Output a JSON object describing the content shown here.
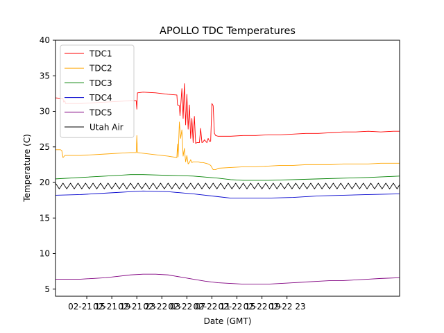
{
  "chart_data": {
    "type": "line",
    "title": "APOLLO TDC Temperatures",
    "xlabel": "Date (GMT)",
    "ylabel": "Temperature (C)",
    "ylim": [
      4,
      40
    ],
    "yticks": [
      5,
      10,
      15,
      20,
      25,
      30,
      35,
      40
    ],
    "xlim": [
      0.0,
      55.0
    ],
    "x_unit": "hours",
    "xticks": [
      {
        "x": 5.0,
        "label": "02-21 15"
      },
      {
        "x": 9.0,
        "label": "02-21 19"
      },
      {
        "x": 13.0,
        "label": "02-21 23"
      },
      {
        "x": 17.0,
        "label": "02-22 03"
      },
      {
        "x": 21.0,
        "label": "02-22 07"
      },
      {
        "x": 25.0,
        "label": "02-22 11"
      },
      {
        "x": 29.0,
        "label": "02-22 15"
      },
      {
        "x": 33.0,
        "label": "02-22 19"
      },
      {
        "x": 37.0,
        "label": "02-22 23"
      }
    ],
    "grid": false,
    "legend_position": "top-left",
    "series": [
      {
        "name": "TDC1",
        "color": "#ff0000",
        "x": [
          0.0,
          1.2,
          1.3,
          1.5,
          1.6,
          2.0,
          4.0,
          6.0,
          8.0,
          10.0,
          12.0,
          12.9,
          13.0,
          13.1,
          14.0,
          16.0,
          18.0,
          19.4,
          19.5,
          19.8,
          19.9,
          20.2,
          20.4,
          20.6,
          20.8,
          21.0,
          21.2,
          21.4,
          21.6,
          21.8,
          22.0,
          22.2,
          22.4,
          22.6,
          22.8,
          23.0,
          23.2,
          23.4,
          23.6,
          23.8,
          24.0,
          24.2,
          24.4,
          24.6,
          24.8,
          25.0,
          25.2,
          25.4,
          25.6,
          26.0,
          28.0,
          30.0,
          32.0,
          34.0,
          36.0,
          38.0,
          40.0,
          42.0,
          44.0,
          46.0,
          48.0,
          50.0,
          52.0,
          54.0,
          55.0
        ],
        "values": [
          31.9,
          31.8,
          31.3,
          31.5,
          31.1,
          31.1,
          31.1,
          31.2,
          31.3,
          31.4,
          31.5,
          31.5,
          30.3,
          32.6,
          32.7,
          32.6,
          32.4,
          32.3,
          30.9,
          30.8,
          29.4,
          33.2,
          29.0,
          33.9,
          28.1,
          32.4,
          27.5,
          30.9,
          26.2,
          29.0,
          25.6,
          29.3,
          25.5,
          25.6,
          25.6,
          25.6,
          27.6,
          25.6,
          25.7,
          26.0,
          25.8,
          25.6,
          26.2,
          25.8,
          25.8,
          31.1,
          30.8,
          26.9,
          26.6,
          26.5,
          26.5,
          26.6,
          26.6,
          26.7,
          26.7,
          26.8,
          26.9,
          26.9,
          27.0,
          27.1,
          27.1,
          27.2,
          27.1,
          27.2,
          27.2
        ]
      },
      {
        "name": "TDC2",
        "color": "#ffa500",
        "x": [
          0.0,
          0.8,
          1.0,
          1.2,
          1.5,
          2.0,
          4.0,
          6.0,
          8.0,
          10.0,
          12.0,
          12.9,
          13.0,
          13.1,
          14.0,
          16.0,
          18.0,
          19.4,
          19.5,
          19.6,
          19.8,
          20.0,
          20.2,
          20.4,
          20.6,
          20.8,
          21.0,
          21.2,
          21.4,
          21.6,
          21.8,
          22.0,
          22.4,
          22.8,
          23.2,
          23.6,
          24.0,
          24.4,
          24.8,
          25.2,
          25.6,
          26.0,
          28.0,
          30.0,
          32.0,
          34.0,
          36.0,
          38.0,
          40.0,
          42.0,
          44.0,
          46.0,
          48.0,
          50.0,
          52.0,
          54.0,
          55.0
        ],
        "values": [
          24.6,
          24.6,
          24.5,
          23.5,
          23.8,
          23.8,
          23.8,
          23.9,
          24.0,
          24.1,
          24.2,
          24.2,
          26.6,
          24.2,
          24.1,
          23.9,
          23.7,
          23.5,
          25.4,
          23.6,
          28.5,
          26.2,
          27.4,
          23.7,
          24.8,
          22.9,
          23.8,
          22.6,
          22.8,
          23.2,
          22.8,
          22.9,
          22.9,
          22.9,
          22.8,
          22.8,
          22.7,
          22.6,
          22.4,
          21.8,
          21.8,
          22.0,
          22.1,
          22.2,
          22.2,
          22.3,
          22.4,
          22.4,
          22.5,
          22.5,
          22.5,
          22.6,
          22.6,
          22.6,
          22.7,
          22.7,
          22.7
        ]
      },
      {
        "name": "TDC3",
        "color": "#008000",
        "x": [
          0.0,
          4.0,
          8.0,
          12.0,
          14.0,
          18.0,
          22.0,
          26.0,
          28.0,
          30.0,
          34.0,
          38.0,
          42.0,
          46.0,
          50.0,
          55.0
        ],
        "values": [
          20.5,
          20.7,
          20.9,
          21.1,
          21.1,
          21.0,
          20.9,
          20.6,
          20.4,
          20.3,
          20.3,
          20.4,
          20.5,
          20.6,
          20.7,
          20.9
        ]
      },
      {
        "name": "TDC4",
        "color": "#0000cd",
        "x": [
          0.0,
          4.0,
          8.0,
          12.0,
          14.0,
          18.0,
          22.0,
          26.0,
          28.0,
          30.0,
          34.0,
          38.0,
          42.0,
          46.0,
          50.0,
          55.0
        ],
        "values": [
          18.2,
          18.3,
          18.5,
          18.7,
          18.8,
          18.7,
          18.4,
          18.0,
          17.8,
          17.8,
          17.8,
          17.9,
          18.1,
          18.2,
          18.3,
          18.4
        ]
      },
      {
        "name": "TDC5",
        "color": "#800080",
        "x": [
          0.0,
          4.0,
          8.0,
          10.0,
          12.0,
          14.0,
          16.0,
          18.0,
          20.0,
          22.0,
          24.0,
          26.0,
          28.0,
          30.0,
          32.0,
          34.0,
          36.0,
          38.0,
          40.0,
          42.0,
          44.0,
          46.0,
          48.0,
          50.0,
          52.0,
          55.0
        ],
        "values": [
          6.4,
          6.4,
          6.6,
          6.8,
          7.0,
          7.1,
          7.1,
          7.0,
          6.7,
          6.4,
          6.1,
          5.9,
          5.8,
          5.7,
          5.7,
          5.7,
          5.8,
          5.9,
          6.0,
          6.1,
          6.2,
          6.2,
          6.3,
          6.4,
          6.5,
          6.6
        ]
      },
      {
        "name": "Utah Air",
        "color": "#000000",
        "x": [
          0.0,
          0.6,
          1.2,
          1.8,
          2.4,
          3.0,
          3.6,
          4.2,
          4.8,
          5.4,
          6.0,
          6.6,
          7.2,
          7.8,
          8.4,
          9.0,
          9.6,
          10.2,
          10.8,
          11.4,
          12.0,
          12.6,
          13.2,
          13.8,
          14.4,
          15.0,
          15.6,
          16.2,
          16.8,
          17.4,
          18.0,
          18.6,
          19.2,
          19.8,
          20.4,
          21.0,
          21.6,
          22.2,
          22.8,
          23.4,
          24.0,
          24.6,
          25.2,
          25.8,
          26.4,
          27.0,
          27.6,
          28.2,
          28.8,
          29.4,
          30.0,
          30.6,
          31.2,
          31.8,
          32.4,
          33.0,
          33.6,
          34.2,
          34.8,
          35.4,
          36.0,
          36.6,
          37.2,
          37.8,
          38.4,
          39.0,
          39.6,
          40.2,
          40.8,
          41.4,
          42.0,
          42.6,
          43.2,
          43.8,
          44.4,
          45.0,
          45.6,
          46.2,
          46.8,
          47.4,
          48.0,
          48.6,
          49.2,
          49.8,
          50.4,
          51.0,
          51.6,
          52.2,
          52.8,
          53.4,
          54.0,
          54.6,
          55.0
        ],
        "values": [
          19.9,
          19.1,
          19.9,
          19.1,
          19.9,
          19.1,
          19.9,
          19.1,
          19.9,
          19.1,
          19.9,
          19.1,
          19.9,
          19.1,
          19.9,
          19.1,
          19.9,
          19.1,
          19.9,
          19.1,
          19.9,
          19.1,
          19.9,
          19.1,
          19.9,
          19.1,
          19.9,
          19.1,
          19.9,
          19.1,
          19.9,
          19.1,
          19.9,
          19.1,
          19.9,
          19.1,
          19.9,
          19.1,
          19.9,
          19.1,
          19.9,
          19.1,
          19.9,
          19.1,
          19.9,
          19.1,
          19.9,
          19.1,
          19.9,
          19.1,
          19.9,
          19.1,
          19.9,
          19.1,
          19.9,
          19.1,
          19.9,
          19.1,
          19.9,
          19.1,
          19.9,
          19.1,
          19.9,
          19.1,
          19.9,
          19.1,
          19.9,
          19.1,
          19.9,
          19.1,
          19.9,
          19.1,
          19.9,
          19.1,
          19.9,
          19.1,
          19.9,
          19.1,
          19.9,
          19.1,
          19.9,
          19.1,
          19.9,
          19.1,
          19.9,
          19.1,
          19.9,
          19.1,
          19.9,
          19.1,
          19.9,
          19.1,
          19.7
        ]
      }
    ]
  }
}
